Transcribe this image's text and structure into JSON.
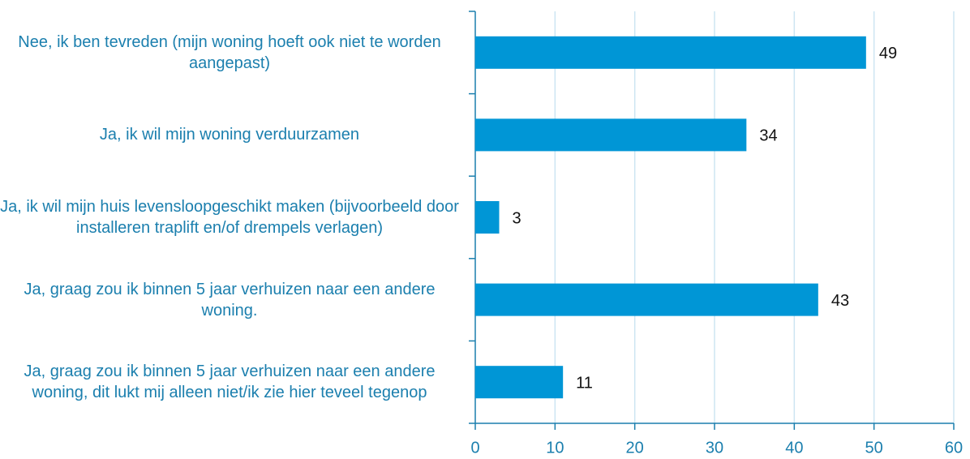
{
  "chart_data": {
    "type": "hbar",
    "categories": [
      "Nee, ik ben tevreden (mijn woning hoeft ook niet te worden aangepast)",
      "Ja, ik wil mijn woning verduurzamen",
      "Ja, ik wil mijn huis levensloopgeschikt maken (bijvoorbeeld door installeren traplift en/of drempels verlagen)",
      "Ja, graag zou ik binnen 5 jaar verhuizen naar een andere woning.",
      "Ja, graag zou ik binnen 5 jaar verhuizen naar een andere woning, dit lukt mij alleen niet/ik zie hier teveel tegenop"
    ],
    "values": [
      49,
      34,
      3,
      43,
      11
    ],
    "color": "#0096d6",
    "xlim": [
      0,
      60
    ],
    "xticks": [
      0,
      10,
      20,
      30,
      40,
      50,
      60
    ],
    "grid": true
  }
}
